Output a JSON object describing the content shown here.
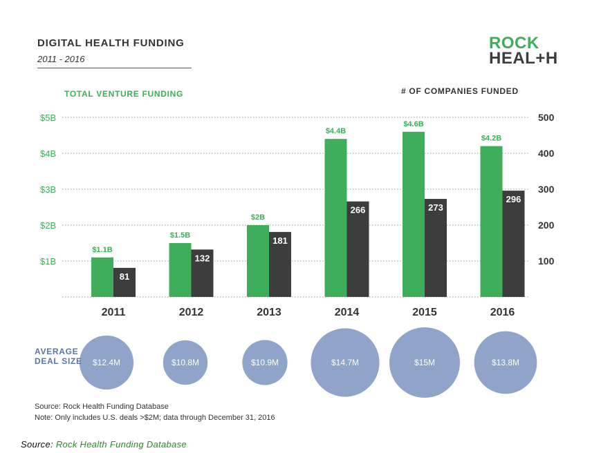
{
  "header": {
    "title": "DIGITAL HEALTH FUNDING",
    "subtitle": "2011 - 2016"
  },
  "logo": {
    "line1": "ROCK",
    "line2": "HEAL+H"
  },
  "chart_data": {
    "type": "bar",
    "categories": [
      "2011",
      "2012",
      "2013",
      "2014",
      "2015",
      "2016"
    ],
    "series": [
      {
        "name": "TOTAL VENTURE FUNDING",
        "axis": "left",
        "unit": "$B",
        "values": [
          1.1,
          1.5,
          2.0,
          4.4,
          4.6,
          4.2
        ],
        "value_labels": [
          "$1.1B",
          "$1.5B",
          "$2B",
          "$4.4B",
          "$4.6B",
          "$4.2B"
        ],
        "color": "#3fae5a"
      },
      {
        "name": "# OF COMPANIES FUNDED",
        "axis": "right",
        "values": [
          81,
          132,
          181,
          266,
          273,
          296
        ],
        "value_labels": [
          "81",
          "132",
          "181",
          "266",
          "273",
          "296"
        ],
        "color": "#3d3d3d"
      }
    ],
    "left_axis": {
      "title": "TOTAL VENTURE FUNDING",
      "ylim": [
        0,
        5
      ],
      "ticks": [
        1,
        2,
        3,
        4,
        5
      ],
      "tick_labels": [
        "$1B",
        "$2B",
        "$3B",
        "$4B",
        "$5B"
      ]
    },
    "right_axis": {
      "title": "# OF COMPANIES FUNDED",
      "ylim": [
        0,
        500
      ],
      "ticks": [
        100,
        200,
        300,
        400,
        500
      ],
      "tick_labels": [
        "100",
        "200",
        "300",
        "400",
        "500"
      ]
    },
    "grid": true,
    "average_deal_size": {
      "label": "AVERAGE DEAL SIZE",
      "unit": "$M",
      "values": [
        12.4,
        10.8,
        10.9,
        14.7,
        15,
        13.8
      ],
      "value_labels": [
        "$12.4M",
        "$10.8M",
        "$10.9M",
        "$14.7M",
        "$15M",
        "$13.8M"
      ],
      "color": "#8fa4c8"
    }
  },
  "notes": {
    "source": "Source: Rock Health Funding Database",
    "note": "Note: Only includes U.S. deals >$2M; data through December 31, 2016"
  },
  "footer": {
    "prefix": "Source: ",
    "link": "Rock Health Funding Database"
  }
}
